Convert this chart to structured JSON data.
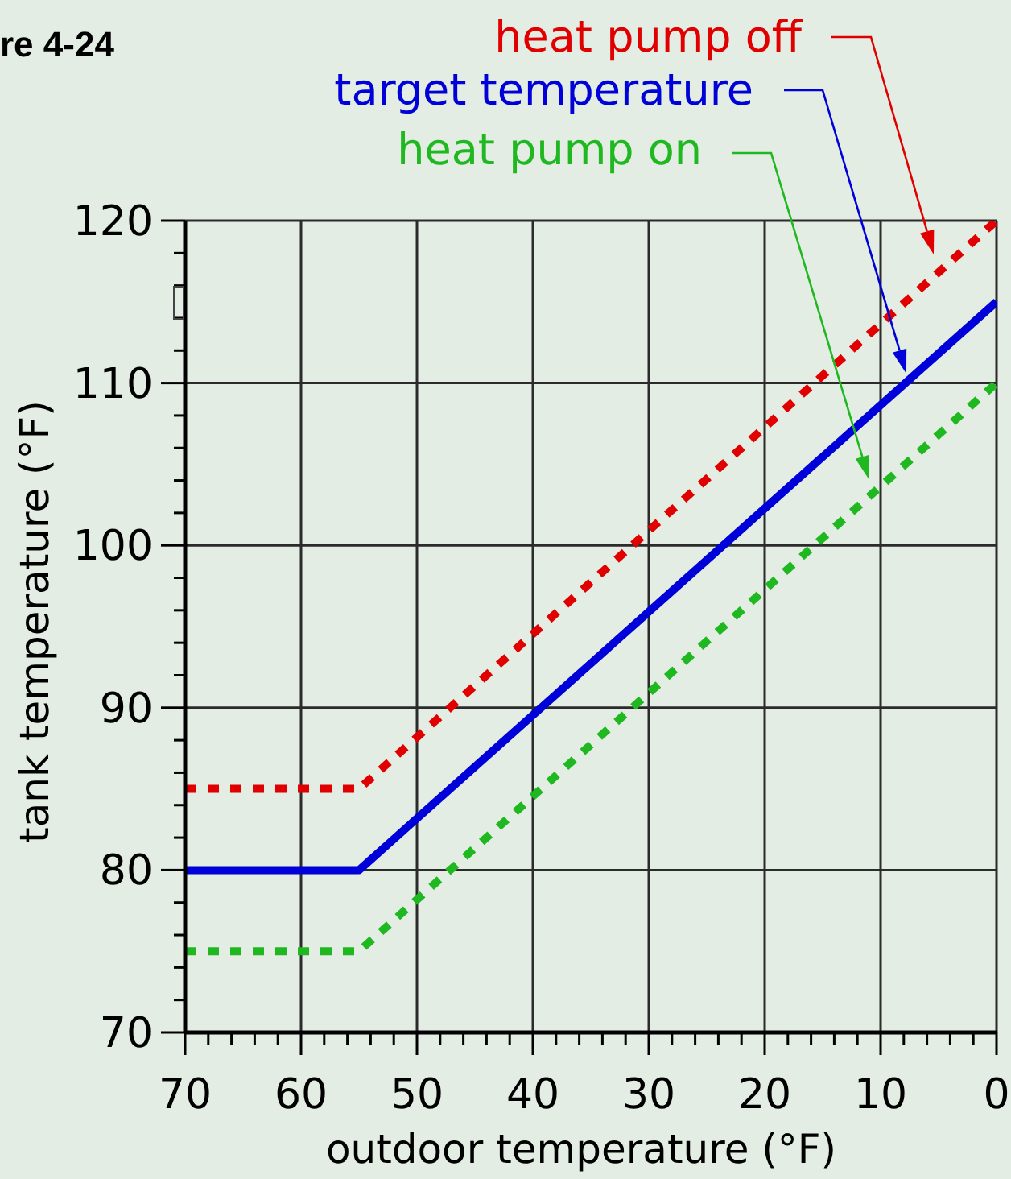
{
  "chart_data": {
    "type": "line",
    "title": "re 4-24",
    "xlabel": "outdoor temperature (°F)",
    "ylabel": "tank temperature (°F)",
    "x": [
      70,
      55,
      0
    ],
    "series": [
      {
        "name": "heat pump off",
        "color": "#e00000",
        "values": [
          85,
          85,
          120
        ],
        "line_style": "dotted"
      },
      {
        "name": "target temperature",
        "color": "#0000d8",
        "values": [
          80,
          80,
          115
        ],
        "line_style": "solid"
      },
      {
        "name": "heat pump on",
        "color": "#20b820",
        "values": [
          75,
          75,
          110
        ],
        "line_style": "dotted"
      }
    ],
    "xlim": [
      70,
      0
    ],
    "xticks": [
      0,
      {
        "value": 2,
        "label": null
      },
      {
        "value": 4,
        "label": null
      },
      {
        "value": 6,
        "label": null
      },
      {
        "value": 8,
        "label": null
      },
      10,
      {
        "value": 12,
        "label": null
      },
      {
        "value": 14,
        "label": null
      },
      {
        "value": 16,
        "label": null
      },
      {
        "value": 18,
        "label": null
      },
      20,
      {
        "value": 22,
        "label": null
      },
      {
        "value": 24,
        "label": null
      },
      {
        "value": 26,
        "label": null
      },
      {
        "value": 28,
        "label": null
      },
      30,
      {
        "value": 32,
        "label": null
      },
      {
        "value": 34,
        "label": null
      },
      {
        "value": 36,
        "label": null
      },
      {
        "value": 38,
        "label": null
      },
      40,
      {
        "value": 42,
        "label": null
      },
      {
        "value": 44,
        "label": null
      },
      {
        "value": 46,
        "label": null
      },
      {
        "value": 48,
        "label": null
      },
      50,
      {
        "value": 52,
        "label": null
      },
      {
        "value": 54,
        "label": null
      },
      {
        "value": 56,
        "label": null
      },
      {
        "value": 58,
        "label": null
      },
      60,
      {
        "value": 62,
        "label": null
      },
      {
        "value": 64,
        "label": null
      },
      {
        "value": 66,
        "label": null
      },
      {
        "value": 68,
        "label": null
      },
      70
    ],
    "ylim": [
      70,
      120
    ],
    "yticks": [
      70,
      {
        "value": 72,
        "label": null
      },
      {
        "value": 74,
        "label": null
      },
      {
        "value": 76,
        "label": null
      },
      {
        "value": 78,
        "label": null
      },
      80,
      {
        "value": 82,
        "label": null
      },
      {
        "value": 84,
        "label": null
      },
      {
        "value": 86,
        "label": null
      },
      {
        "value": 88,
        "label": null
      },
      90,
      {
        "value": 92,
        "label": null
      },
      {
        "value": 94,
        "label": null
      },
      {
        "value": 96,
        "label": null
      },
      {
        "value": 98,
        "label": null
      },
      100,
      {
        "value": 102,
        "label": null
      },
      {
        "value": 104,
        "label": null
      },
      {
        "value": 106,
        "label": null
      },
      {
        "value": 108,
        "label": null
      },
      110,
      {
        "value": 112,
        "label": null
      },
      {
        "value": 114,
        "label": null
      },
      {
        "value": 116,
        "label": null
      },
      {
        "value": 118,
        "label": null
      },
      120
    ],
    "grid": true
  }
}
